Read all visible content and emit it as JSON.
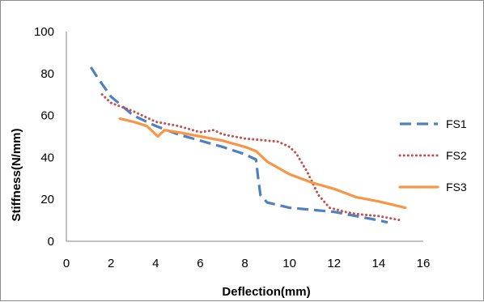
{
  "chart_data": {
    "type": "line",
    "title": "",
    "xlabel": "Deflection(mm)",
    "ylabel": "Stiffness(N/mm)",
    "xlim": [
      0,
      16
    ],
    "ylim": [
      0,
      100
    ],
    "x_ticks": [
      "0",
      "2",
      "4",
      "6",
      "8",
      "10",
      "12",
      "14",
      "16"
    ],
    "y_ticks": [
      "0",
      "20",
      "40",
      "60",
      "80",
      "100"
    ],
    "grid": false,
    "legend_position": "right",
    "series": [
      {
        "name": "FS1",
        "color": "#4f81bd",
        "style": "dashed",
        "points": [
          [
            1.1,
            83
          ],
          [
            1.4,
            78
          ],
          [
            2.0,
            69
          ],
          [
            3.0,
            60
          ],
          [
            4.0,
            55
          ],
          [
            5.0,
            51
          ],
          [
            6.0,
            48
          ],
          [
            7.0,
            45
          ],
          [
            8.0,
            41.5
          ],
          [
            8.5,
            39
          ],
          [
            8.6,
            30
          ],
          [
            8.7,
            22
          ],
          [
            9.0,
            18.5
          ],
          [
            10.0,
            16
          ],
          [
            11.0,
            15
          ],
          [
            12.0,
            14
          ],
          [
            13.0,
            12
          ],
          [
            14.0,
            10
          ],
          [
            14.4,
            9
          ]
        ]
      },
      {
        "name": "FS2",
        "color": "#c0504d",
        "style": "dotted",
        "points": [
          [
            1.6,
            70
          ],
          [
            2.0,
            66
          ],
          [
            3.0,
            62
          ],
          [
            4.0,
            57
          ],
          [
            5.0,
            55
          ],
          [
            6.0,
            52
          ],
          [
            6.6,
            53
          ],
          [
            7.0,
            51
          ],
          [
            8.0,
            49
          ],
          [
            9.0,
            48
          ],
          [
            9.5,
            47.5
          ],
          [
            10.0,
            45
          ],
          [
            10.3,
            42
          ],
          [
            10.8,
            33
          ],
          [
            11.3,
            22
          ],
          [
            11.8,
            16
          ],
          [
            12.5,
            14
          ],
          [
            13.0,
            13
          ],
          [
            14.0,
            12
          ],
          [
            15.0,
            10
          ]
        ]
      },
      {
        "name": "FS3",
        "color": "#f79646",
        "style": "solid",
        "points": [
          [
            2.4,
            58.5
          ],
          [
            3.0,
            57
          ],
          [
            3.6,
            55
          ],
          [
            4.1,
            50
          ],
          [
            4.4,
            53
          ],
          [
            5.0,
            52
          ],
          [
            6.0,
            50
          ],
          [
            7.0,
            48
          ],
          [
            8.0,
            45
          ],
          [
            8.5,
            43
          ],
          [
            9.0,
            38
          ],
          [
            10.0,
            32
          ],
          [
            11.0,
            28
          ],
          [
            12.0,
            25
          ],
          [
            13.0,
            21
          ],
          [
            14.0,
            19
          ],
          [
            15.0,
            16.5
          ],
          [
            15.2,
            16
          ]
        ]
      }
    ]
  }
}
